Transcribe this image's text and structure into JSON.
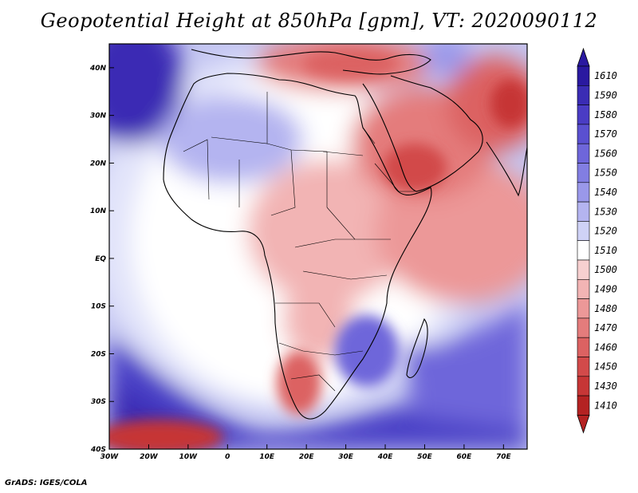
{
  "title": "Geopotential Height at 850hPa [gpm], VT: 2020090112",
  "credit": "GrADS: IGES/COLA",
  "map": {
    "lon_range": [
      -30,
      76
    ],
    "lat_range": [
      -40,
      45
    ],
    "lon_ticks": [
      {
        "value": -30,
        "label": "30W"
      },
      {
        "value": -20,
        "label": "20W"
      },
      {
        "value": -10,
        "label": "10W"
      },
      {
        "value": 0,
        "label": "0"
      },
      {
        "value": 10,
        "label": "10E"
      },
      {
        "value": 20,
        "label": "20E"
      },
      {
        "value": 30,
        "label": "30E"
      },
      {
        "value": 40,
        "label": "40E"
      },
      {
        "value": 50,
        "label": "50E"
      },
      {
        "value": 60,
        "label": "60E"
      },
      {
        "value": 70,
        "label": "70E"
      }
    ],
    "lat_ticks": [
      {
        "value": 40,
        "label": "40N"
      },
      {
        "value": 30,
        "label": "30N"
      },
      {
        "value": 20,
        "label": "20N"
      },
      {
        "value": 10,
        "label": "10N"
      },
      {
        "value": 0,
        "label": "EQ"
      },
      {
        "value": -10,
        "label": "10S"
      },
      {
        "value": -20,
        "label": "20S"
      },
      {
        "value": -30,
        "label": "30S"
      },
      {
        "value": -40,
        "label": "40S"
      }
    ]
  },
  "colorbar": {
    "levels": [
      {
        "label": "1610",
        "color": "#2a19a0"
      },
      {
        "label": "1590",
        "color": "#3a2cb4"
      },
      {
        "label": "1580",
        "color": "#4a3cc4"
      },
      {
        "label": "1570",
        "color": "#5a50d0"
      },
      {
        "label": "1560",
        "color": "#6e66da"
      },
      {
        "label": "1550",
        "color": "#827ee2"
      },
      {
        "label": "1540",
        "color": "#9a98ea"
      },
      {
        "label": "1530",
        "color": "#b4b4f0"
      },
      {
        "label": "1520",
        "color": "#cfd2f6"
      },
      {
        "label": "1510",
        "color": "#ffffff"
      },
      {
        "label": "1500",
        "color": "#f7d0d0"
      },
      {
        "label": "1490",
        "color": "#f2b4b4"
      },
      {
        "label": "1480",
        "color": "#ec9898"
      },
      {
        "label": "1470",
        "color": "#e47c7c"
      },
      {
        "label": "1460",
        "color": "#dc6262"
      },
      {
        "label": "1450",
        "color": "#d24a4a"
      },
      {
        "label": "1430",
        "color": "#c63636"
      },
      {
        "label": "1410",
        "color": "#b42222"
      }
    ]
  }
}
